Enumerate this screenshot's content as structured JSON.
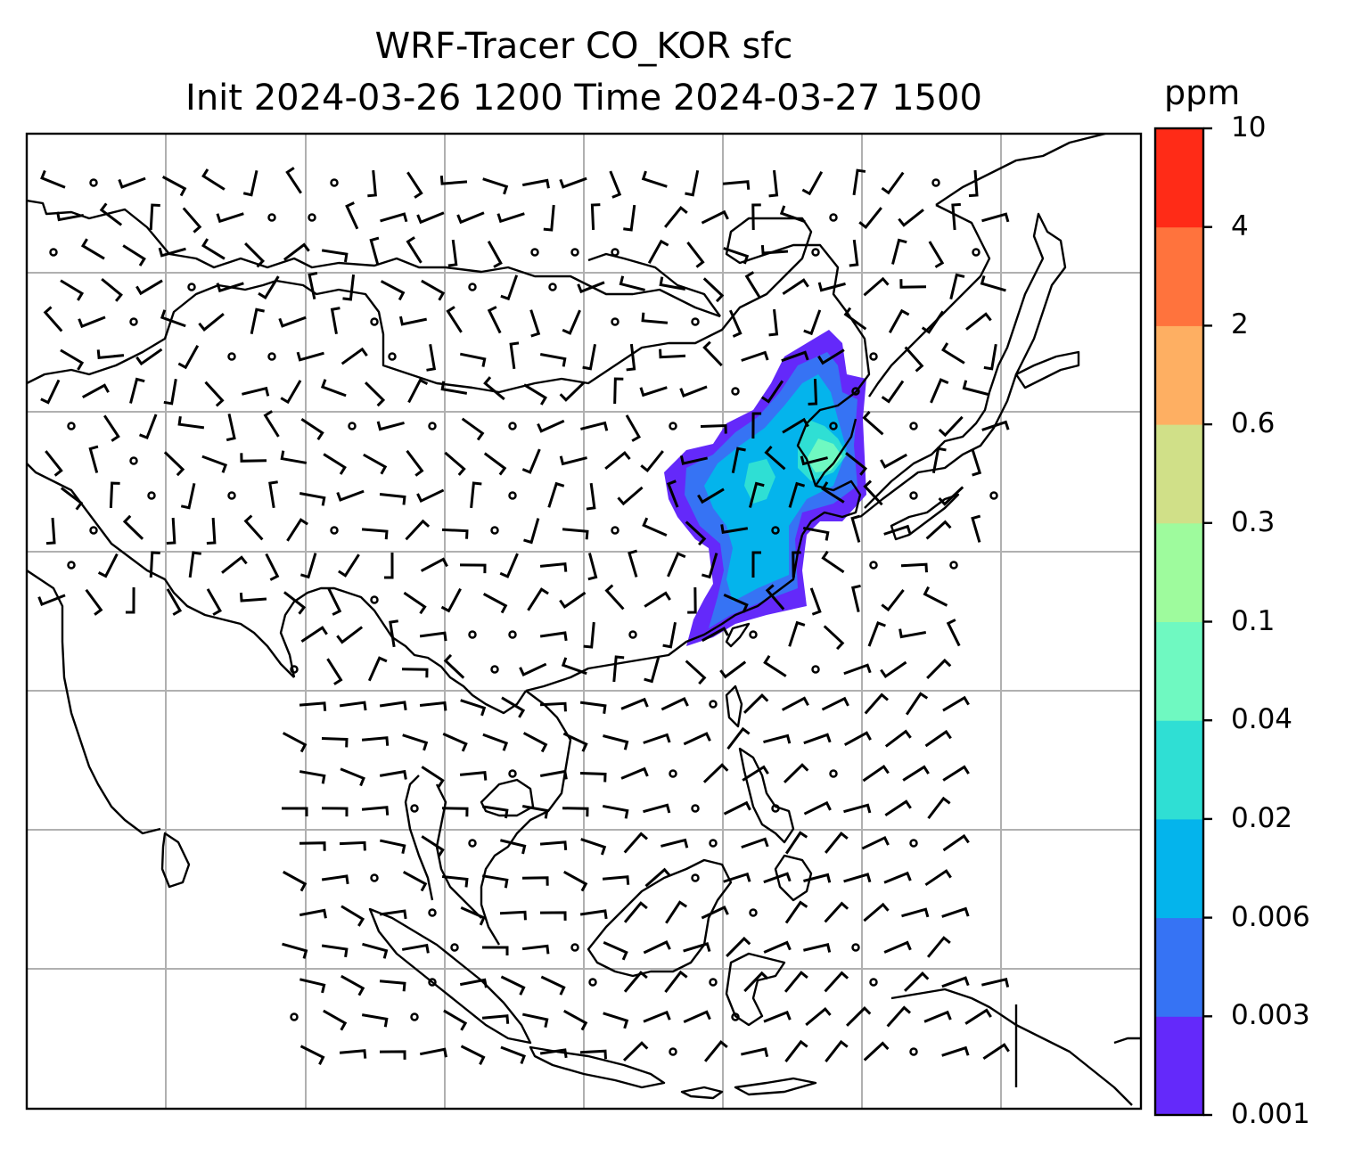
{
  "title": {
    "line1": "WRF-Tracer CO_KOR sfc",
    "line2": "Init 2024-03-26 1200 Time 2024-03-27 1500"
  },
  "colorbar": {
    "unit": "ppm",
    "levels": [
      "0.001",
      "0.003",
      "0.006",
      "0.02",
      "0.04",
      "0.1",
      "0.3",
      "0.6",
      "2",
      "4",
      "10"
    ],
    "colors": [
      "#6429fa",
      "#3673f4",
      "#04b4ec",
      "#2fdfd4",
      "#6ff9c1",
      "#9efb9d",
      "#d0e088",
      "#feaf62",
      "#ff733d",
      "#ff2b17"
    ]
  },
  "map": {
    "gridlines": true,
    "land_color": "#ffffff",
    "coastline_color": "#000000",
    "grid_color": "#b0b0b0",
    "tracer_field": "CO_KOR",
    "wind_barbs": true
  }
}
